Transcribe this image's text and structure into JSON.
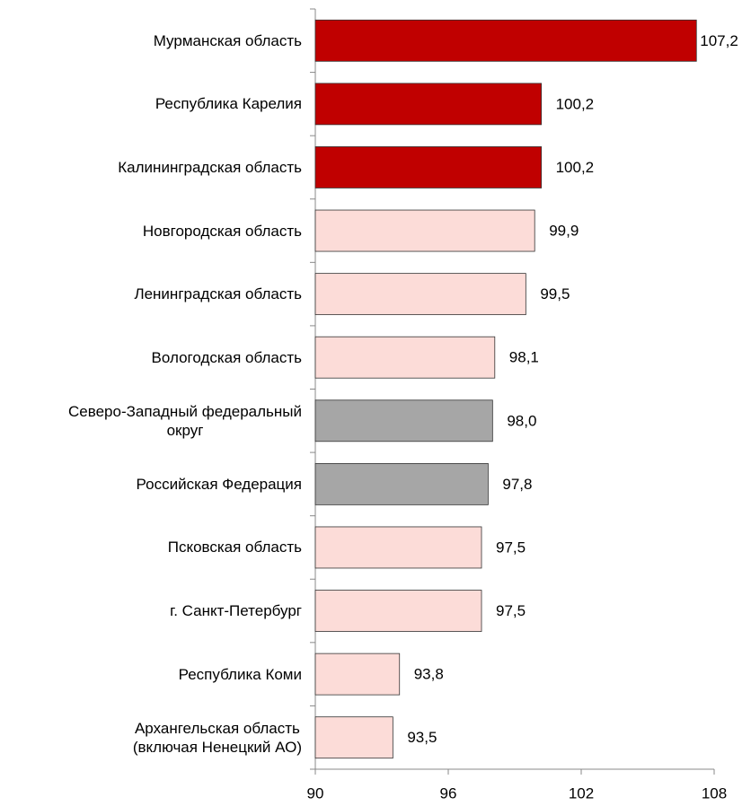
{
  "chart_data": {
    "type": "barh",
    "categories": [
      "Мурманская область",
      "Республика Карелия",
      "Калининградская область",
      "Новгородская область",
      "Ленинградская область",
      "Вологодская область",
      "Северо-Западный федеральный\nокруг",
      "Российская Федерация",
      "Псковская область",
      "г. Санкт-Петербург",
      "Республика Коми",
      "Архангельская область\n(включая Ненецкий АО)"
    ],
    "values": [
      107.2,
      100.2,
      100.2,
      99.9,
      99.5,
      98.1,
      98.0,
      97.8,
      97.5,
      97.5,
      93.8,
      93.5
    ],
    "value_labels": [
      "107,2",
      "100,2",
      "100,2",
      "99,9",
      "99,5",
      "98,1",
      "98,0",
      "97,8",
      "97,5",
      "97,5",
      "93,8",
      "93,5"
    ],
    "colors": [
      "#c00000",
      "#c00000",
      "#c00000",
      "#fcdcd8",
      "#fcdcd8",
      "#fcdcd8",
      "#a6a6a6",
      "#a6a6a6",
      "#fcdcd8",
      "#fcdcd8",
      "#fcdcd8",
      "#fcdcd8"
    ],
    "xlim": [
      90,
      108
    ],
    "xticks": [
      90,
      96,
      102,
      108
    ]
  }
}
